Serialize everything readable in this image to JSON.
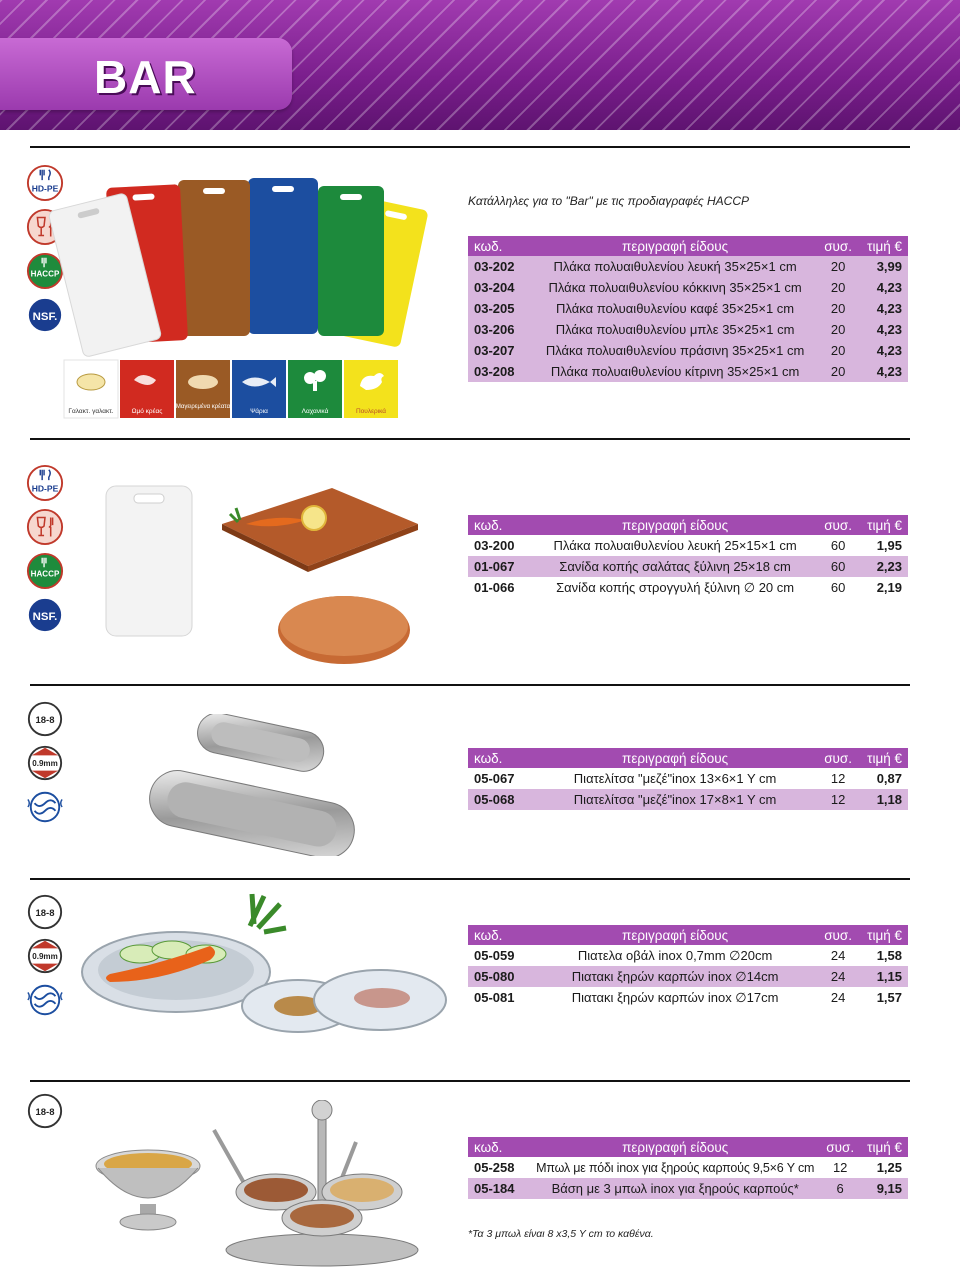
{
  "header": {
    "title": "BAR"
  },
  "tagline": "Κατάλληλες για το \"Bar\" με τις προδιαγραφές HACCP",
  "columns": {
    "code": "κωδ.",
    "desc": "περιγραφή είδους",
    "qty": "συσ.",
    "price": "τιμή €"
  },
  "cert_labels": {
    "hdpe": "HD-PE",
    "haccp": "HACCP",
    "nsf": "NSF.",
    "steel": "18-8",
    "thick": "0.9mm"
  },
  "board_labels": [
    "Γαλακτ. γαλακτ.",
    "Ωμό κρέας",
    "Μαγειρεμένα κρέατα",
    "Ψάρια",
    "Λαχανικά",
    "Πουλερικά"
  ],
  "colors": {
    "accent": "#a24bb0",
    "row_alt": "#d8b6dd",
    "banner": "#7a1e8c"
  },
  "sections": [
    {
      "rows": [
        {
          "code": "03-202",
          "desc": "Πλάκα πολυαιθυλενίου λευκή 35×25×1 cm",
          "qty": "20",
          "price": "3,99"
        },
        {
          "code": "03-204",
          "desc": "Πλάκα πολυαιθυλενίου κόκκινη 35×25×1 cm",
          "qty": "20",
          "price": "4,23"
        },
        {
          "code": "03-205",
          "desc": "Πλάκα πολυαιθυλενίου καφέ 35×25×1 cm",
          "qty": "20",
          "price": "4,23"
        },
        {
          "code": "03-206",
          "desc": "Πλάκα πολυαιθυλενίου μπλε 35×25×1 cm",
          "qty": "20",
          "price": "4,23"
        },
        {
          "code": "03-207",
          "desc": "Πλάκα πολυαιθυλενίου πράσινη 35×25×1 cm",
          "qty": "20",
          "price": "4,23"
        },
        {
          "code": "03-208",
          "desc": "Πλάκα πολυαιθυλενίου κίτρινη 35×25×1 cm",
          "qty": "20",
          "price": "4,23"
        }
      ]
    },
    {
      "rows": [
        {
          "code": "03-200",
          "desc": "Πλάκα πολυαιθυλενίου λευκή 25×15×1 cm",
          "qty": "60",
          "price": "1,95"
        },
        {
          "code": "01-067",
          "desc": "Σανίδα κοπής σαλάτας ξύλινη 25×18 cm",
          "qty": "60",
          "price": "2,23"
        },
        {
          "code": "01-066",
          "desc": "Σανίδα κοπής στρογγυλή ξύλινη ∅ 20 cm",
          "qty": "60",
          "price": "2,19"
        }
      ]
    },
    {
      "rows": [
        {
          "code": "05-067",
          "desc": "Πιατελίτσα \"μεζέ\"inox 13×6×1 Y cm",
          "qty": "12",
          "price": "0,87"
        },
        {
          "code": "05-068",
          "desc": "Πιατελίτσα \"μεζέ\"inox 17×8×1 Y cm",
          "qty": "12",
          "price": "1,18"
        }
      ]
    },
    {
      "rows": [
        {
          "code": "05-059",
          "desc": "Πιατελα οβάλ inox 0,7mm ∅20cm",
          "qty": "24",
          "price": "1,58"
        },
        {
          "code": "05-080",
          "desc": "Πιατακι ξηρών καρπών inox ∅14cm",
          "qty": "24",
          "price": "1,15"
        },
        {
          "code": "05-081",
          "desc": "Πιατακι ξηρών καρπών inox ∅17cm",
          "qty": "24",
          "price": "1,57"
        }
      ]
    },
    {
      "rows": [
        {
          "code": "05-258",
          "desc": "Μπωλ με πόδι inox για ξηρούς καρπούς 9,5×6 Y cm",
          "qty": "12",
          "price": "1,25"
        },
        {
          "code": "05-184",
          "desc": "Βάση με 3 μπωλ inox για ξηρούς καρπούς*",
          "qty": "6",
          "price": "9,15"
        }
      ]
    }
  ],
  "footnote": "*Τα 3 μπωλ είναι 8 x3,5 Y cm το καθένα."
}
